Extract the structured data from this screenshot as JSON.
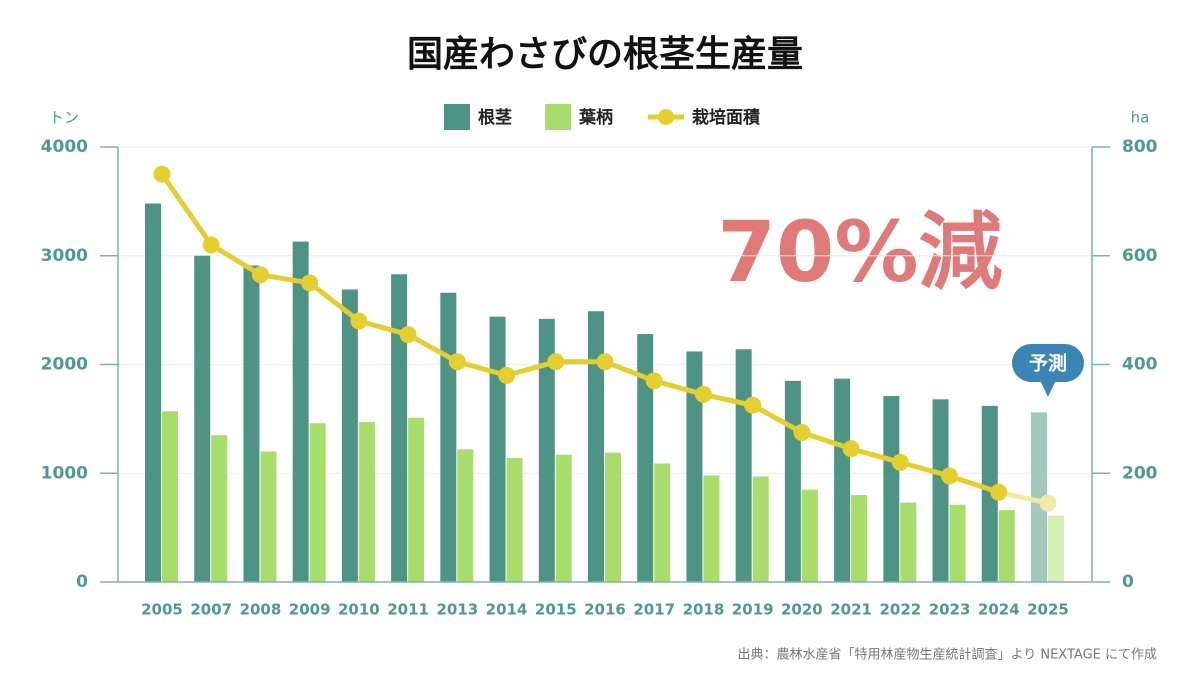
{
  "chart_data": {
    "type": "bar_line",
    "title": "国産わさびの根茎生産量",
    "y_unit": "トン",
    "y2_unit": "ha",
    "annotation": "70%減",
    "forecast_label": "予測",
    "source": "出典：農林水産省「特用林産物生産統計調査」より NEXTAGE にて作成",
    "categories": [
      "2005",
      "2007",
      "2008",
      "2009",
      "2010",
      "2011",
      "2013",
      "2014",
      "2015",
      "2016",
      "2017",
      "2018",
      "2019",
      "2020",
      "2021",
      "2022",
      "2023",
      "2024",
      "2025"
    ],
    "series": [
      {
        "name": "根茎",
        "type": "bar",
        "color": "#4e9484",
        "forecast_color": "#a3c9bf",
        "values": [
          3480,
          3000,
          2910,
          3130,
          2690,
          2830,
          2660,
          2440,
          2420,
          2490,
          2280,
          2120,
          2140,
          1850,
          1870,
          1710,
          1680,
          1620,
          1560
        ]
      },
      {
        "name": "葉柄",
        "type": "bar",
        "color": "#a8dd6c",
        "forecast_color": "#d5efb7",
        "values": [
          1570,
          1350,
          1200,
          1460,
          1470,
          1510,
          1220,
          1140,
          1170,
          1190,
          1090,
          980,
          970,
          850,
          800,
          730,
          710,
          660,
          610
        ]
      },
      {
        "name": "栽培面積",
        "type": "line",
        "axis": "y2",
        "color": "#e4cf2f",
        "forecast_color": "#f1e9a3",
        "values": [
          750,
          620,
          565,
          550,
          480,
          455,
          405,
          380,
          405,
          405,
          370,
          345,
          325,
          275,
          245,
          220,
          195,
          165,
          145
        ]
      }
    ],
    "ylim": [
      0,
      4000
    ],
    "yticks": [
      0,
      1000,
      2000,
      3000,
      4000
    ],
    "y2lim": [
      0,
      800
    ],
    "y2ticks": [
      0,
      200,
      400,
      600,
      800
    ],
    "grid": true,
    "legend": "top"
  }
}
